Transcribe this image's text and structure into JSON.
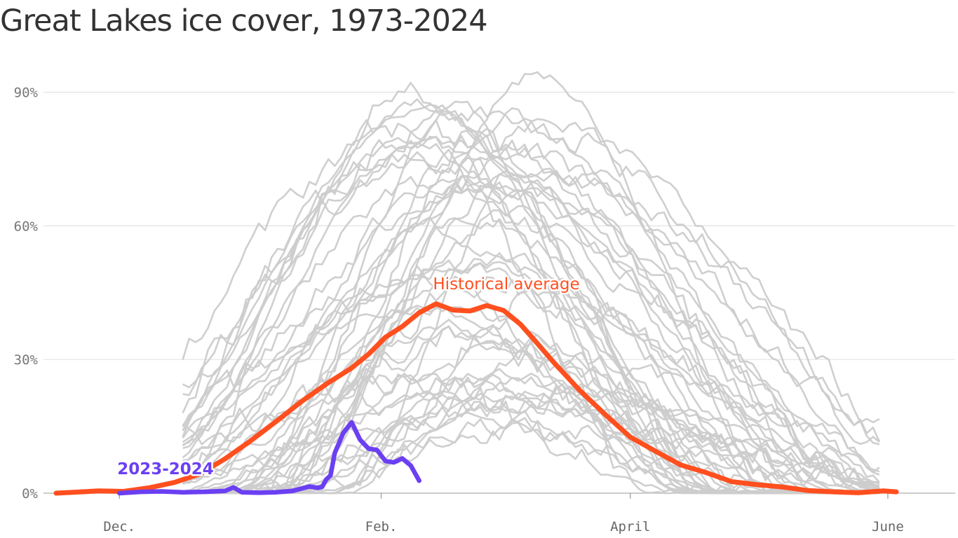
{
  "chart_data": {
    "type": "line",
    "title": "Great Lakes ice cover, 1973-2024",
    "x_axis": {
      "ticks": [
        "Dec.",
        "Feb.",
        "April",
        "June"
      ],
      "tick_days": [
        15,
        77,
        136,
        197
      ],
      "range_days": [
        0,
        208
      ]
    },
    "y_axis": {
      "ticks": [
        "0%",
        "30%",
        "60%",
        "90%"
      ],
      "tick_values": [
        0,
        30,
        60,
        90
      ],
      "ylim": [
        0,
        95
      ]
    },
    "grid": true,
    "legend": "none",
    "annotations": [
      {
        "text": "Historical average",
        "color": "#ff4f1f",
        "series": "average"
      },
      {
        "text": "2023-2024",
        "color": "#6b3ff2",
        "series": "current"
      }
    ],
    "series": [
      {
        "name": "Historical average",
        "color": "#ff4f1f",
        "x": [
          0,
          10,
          16,
          22,
          28,
          34,
          40,
          46,
          52,
          58,
          64,
          70,
          74,
          78,
          82,
          86,
          90,
          94,
          98,
          102,
          106,
          110,
          114,
          118,
          124,
          130,
          136,
          142,
          148,
          154,
          160,
          166,
          172,
          178,
          184,
          190,
          196,
          199
        ],
        "y": [
          0,
          0.5,
          0.4,
          1.2,
          2.4,
          4.3,
          7.7,
          11.7,
          16.0,
          20.5,
          24.5,
          28.1,
          31.2,
          35.0,
          37.4,
          40.5,
          42.5,
          41.1,
          40.9,
          42.1,
          41.0,
          37.9,
          33.6,
          29.2,
          23.1,
          17.7,
          12.6,
          9.4,
          6.3,
          4.6,
          2.6,
          1.9,
          1.4,
          0.6,
          0.3,
          0.1,
          0.5,
          0.3
        ]
      },
      {
        "name": "2023-2024",
        "color": "#6b3ff2",
        "x": [
          15,
          20,
          25,
          30,
          35,
          40,
          42,
          44,
          48,
          52,
          56,
          60,
          62,
          63,
          64,
          65,
          66,
          68,
          70,
          72,
          74,
          76,
          78,
          80,
          82,
          84,
          86
        ],
        "y": [
          0,
          0.3,
          0.4,
          0.2,
          0.3,
          0.5,
          1.3,
          0.2,
          0.1,
          0.2,
          0.5,
          1.5,
          1.2,
          1.4,
          3.1,
          4.0,
          9.0,
          13.5,
          15.9,
          12.0,
          10.0,
          9.7,
          7.2,
          6.9,
          7.8,
          6.2,
          2.8
        ]
      }
    ],
    "background_series_years": "1973-2022",
    "background_series_color": "#cccccc"
  }
}
